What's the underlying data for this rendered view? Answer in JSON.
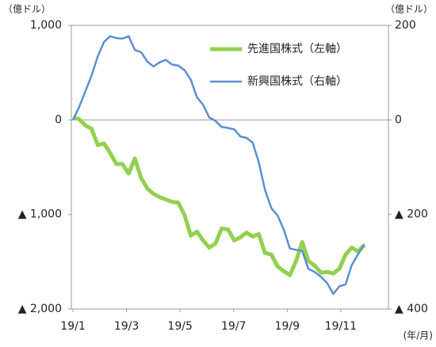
{
  "chart_data": {
    "type": "line",
    "y_unit": "（億ドル）",
    "y2_unit": "（億ドル）",
    "x_unit": "(年/月)",
    "x": [
      0,
      0.23,
      0.46,
      0.69,
      0.93,
      1.16,
      1.39,
      1.62,
      1.85,
      2.08,
      2.31,
      2.55,
      2.78,
      3.01,
      3.24,
      3.47,
      3.7,
      3.93,
      4.17,
      4.4,
      4.63,
      4.86,
      5.09,
      5.32,
      5.55,
      5.79,
      6.02,
      6.25,
      6.48,
      6.71,
      6.94,
      7.17,
      7.41,
      7.64,
      7.87,
      8.1,
      8.33,
      8.56,
      8.79,
      9.03,
      9.26,
      9.49,
      9.72,
      9.95,
      10.18,
      10.41,
      10.64,
      10.88
    ],
    "xlim": [
      -0.06,
      11.78
    ],
    "xticks": [
      {
        "value": 0,
        "label": "19/1"
      },
      {
        "value": 2,
        "label": "19/3"
      },
      {
        "value": 4,
        "label": "19/5"
      },
      {
        "value": 6,
        "label": "19/7"
      },
      {
        "value": 8,
        "label": "19/9"
      },
      {
        "value": 10,
        "label": "19/11"
      }
    ],
    "ylim": [
      -2000,
      1000
    ],
    "yticks": [
      {
        "value": 1000,
        "label": "1,000"
      },
      0,
      {
        "value": -1000,
        "label": "▲ 1,000"
      },
      {
        "value": -2000,
        "label": "▲ 2,000"
      }
    ],
    "y2lim": [
      -400,
      200
    ],
    "y2ticks": [
      200,
      0,
      {
        "value": -200,
        "label": "▲ 200"
      },
      {
        "value": -400,
        "label": "▲ 400"
      }
    ],
    "legend": "upper right",
    "series": [
      {
        "name": "先進国株式（左軸）",
        "color": "#92d050",
        "values": [
          25,
          8,
          -58,
          -92,
          -267,
          -250,
          -350,
          -467,
          -467,
          -567,
          -408,
          -617,
          -725,
          -783,
          -817,
          -842,
          -867,
          -875,
          -1008,
          -1225,
          -1183,
          -1275,
          -1350,
          -1308,
          -1150,
          -1158,
          -1275,
          -1242,
          -1192,
          -1233,
          -1208,
          -1408,
          -1425,
          -1550,
          -1600,
          -1642,
          -1492,
          -1292,
          -1492,
          -1542,
          -1617,
          -1608,
          -1625,
          -1575,
          -1425,
          -1350,
          -1392,
          -1325
        ]
      },
      {
        "name": "新興国株式（右軸）",
        "color": "#5b8fd0",
        "axis": "y2",
        "values": [
          0,
          27,
          60,
          93,
          135,
          165,
          177,
          173,
          172,
          177,
          148,
          143,
          123,
          113,
          122,
          127,
          117,
          115,
          105,
          85,
          48,
          32,
          5,
          -2,
          -15,
          -17,
          -20,
          -35,
          -38,
          -48,
          -90,
          -148,
          -187,
          -202,
          -232,
          -272,
          -275,
          -277,
          -315,
          -322,
          -332,
          -345,
          -368,
          -352,
          -348,
          -307,
          -285,
          -263
        ]
      }
    ]
  }
}
